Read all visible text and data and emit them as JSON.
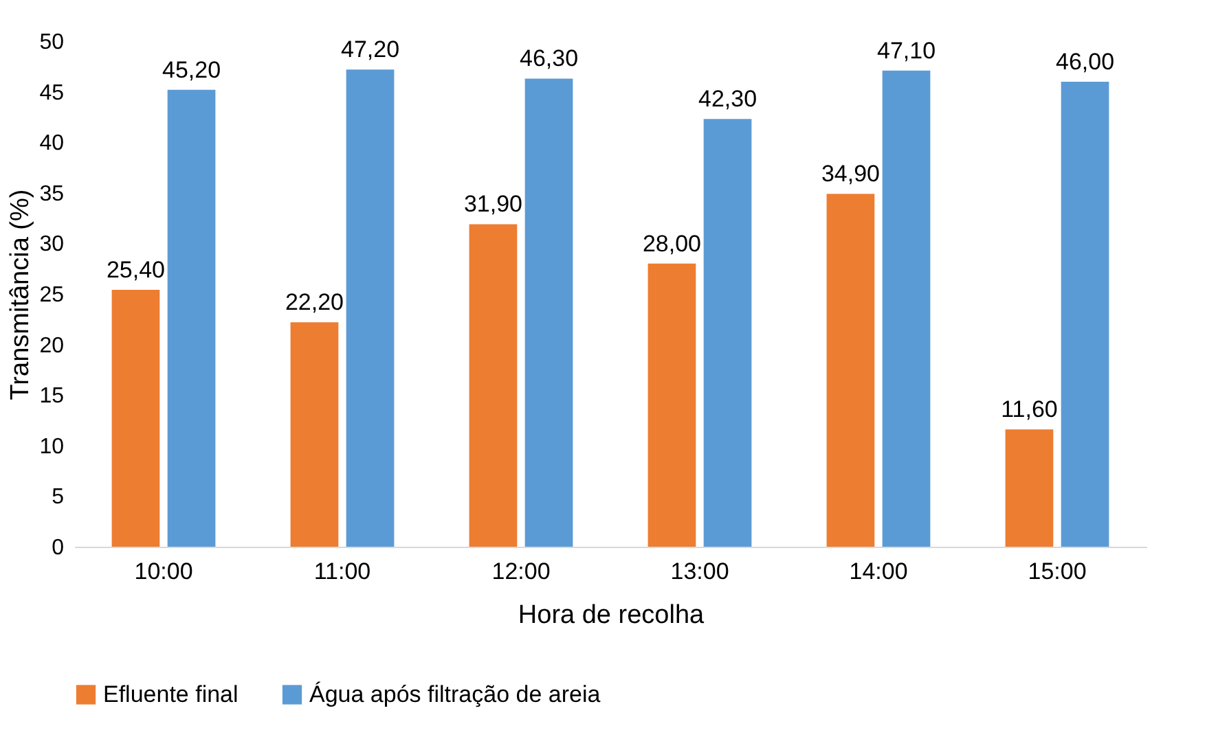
{
  "chart_data": {
    "type": "bar",
    "xlabel": "Hora de recolha",
    "ylabel": "Transmitância (%)",
    "categories": [
      "10:00",
      "11:00",
      "12:00",
      "13:00",
      "14:00",
      "15:00"
    ],
    "series": [
      {
        "name": "Efluente final",
        "color": "#ed7d31",
        "values": [
          25.4,
          22.2,
          31.9,
          28.0,
          34.9,
          11.6
        ],
        "value_labels": [
          "25,40",
          "22,20",
          "31,90",
          "28,00",
          "34,90",
          "11,60"
        ]
      },
      {
        "name": "Água após filtração de areia",
        "color": "#5b9bd5",
        "values": [
          45.2,
          47.2,
          46.3,
          42.3,
          47.1,
          46.0
        ],
        "value_labels": [
          "45,20",
          "47,20",
          "46,30",
          "42,30",
          "47,10",
          "46,00"
        ]
      }
    ],
    "ylim": [
      0,
      50
    ],
    "yticks": [
      0,
      5,
      10,
      15,
      20,
      25,
      30,
      35,
      40,
      45,
      50
    ],
    "legend": "bottom"
  }
}
